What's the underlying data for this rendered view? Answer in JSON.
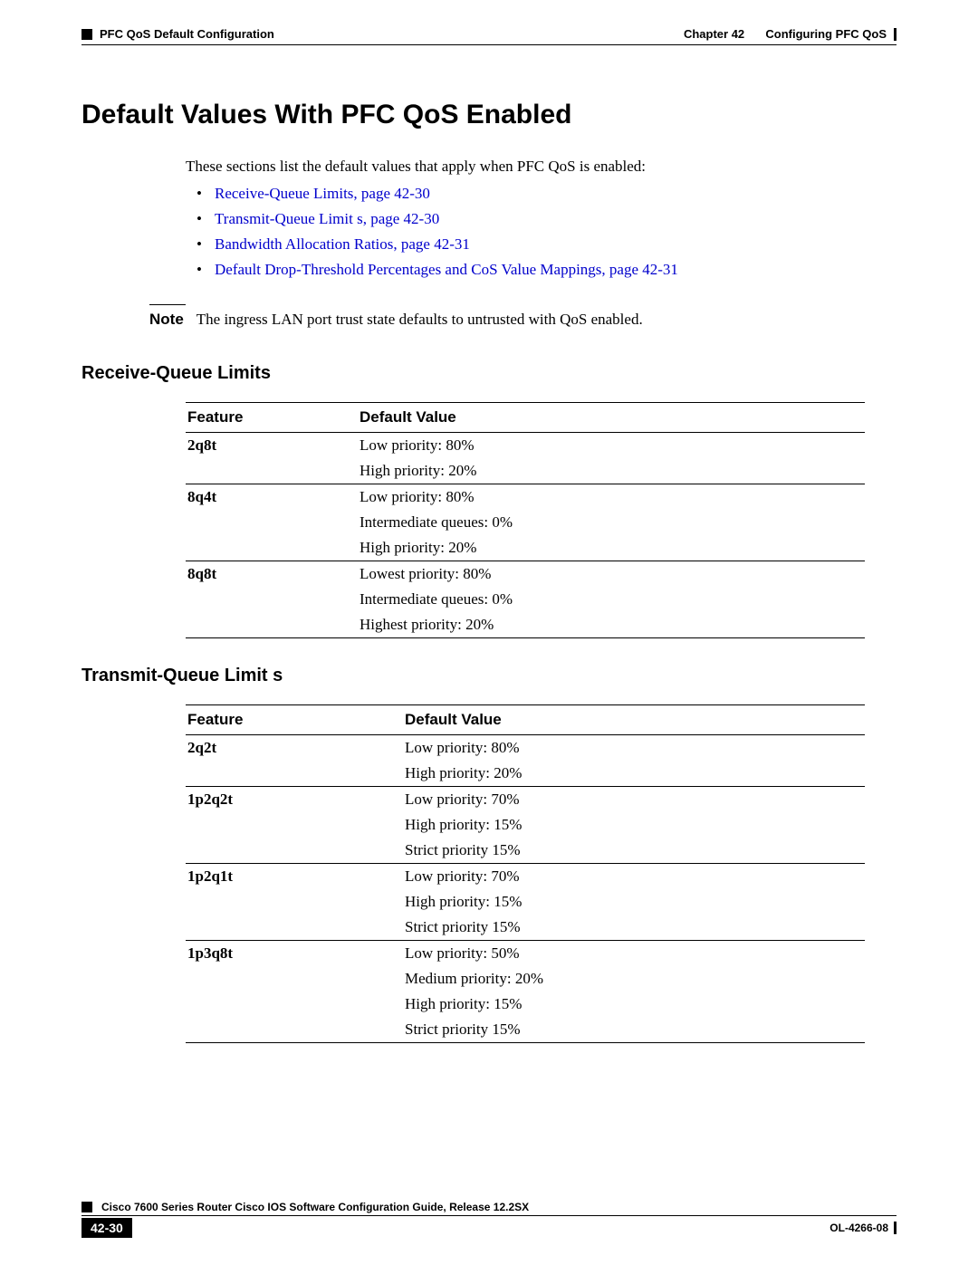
{
  "header": {
    "chapter": "Chapter 42",
    "chapter_title": "Configuring PFC QoS",
    "section": "PFC QoS Default Configuration"
  },
  "title": "Default Values With PFC QoS Enabled",
  "intro": "These sections list the default values that apply when PFC QoS is enabled:",
  "links": [
    "Receive-Queue Limits, page 42-30",
    "Transmit-Queue Limit s, page 42-30",
    "Bandwidth Allocation Ratios, page 42-31",
    "Default Drop-Threshold Percentages and CoS Value Mappings, page 42-31"
  ],
  "note": {
    "label": "Note",
    "text": "The ingress LAN port trust state defaults to untrusted with QoS enabled."
  },
  "receive": {
    "heading": "Receive-Queue Limits",
    "col_feature": "Feature",
    "col_value": "Default Value",
    "col1_width": 190,
    "col2_width": 560,
    "rows": [
      {
        "feature": "2q8t",
        "values": [
          "Low priority: 80%",
          "High priority: 20%"
        ]
      },
      {
        "feature": "8q4t",
        "values": [
          "Low priority: 80%",
          "Intermediate queues: 0%",
          "High priority: 20%"
        ]
      },
      {
        "feature": "8q8t",
        "values": [
          "Lowest priority: 80%",
          "Intermediate queues: 0%",
          "Highest priority: 20%"
        ]
      }
    ]
  },
  "transmit": {
    "heading": "Transmit-Queue Limit s",
    "col_feature": "Feature",
    "col_value": "Default Value",
    "col1_width": 240,
    "col2_width": 510,
    "rows": [
      {
        "feature": "2q2t",
        "values": [
          "Low priority: 80%",
          "High priority: 20%"
        ]
      },
      {
        "feature": "1p2q2t",
        "values": [
          "Low priority: 70%",
          "High priority: 15%",
          "Strict priority 15%"
        ]
      },
      {
        "feature": "1p2q1t",
        "values": [
          "Low priority: 70%",
          "High priority: 15%",
          "Strict priority 15%"
        ]
      },
      {
        "feature": "1p3q8t",
        "values": [
          "Low priority: 50%",
          "Medium priority: 20%",
          "High priority: 15%",
          "Strict priority 15%"
        ]
      }
    ]
  },
  "footer": {
    "book": "Cisco 7600 Series Router Cisco IOS Software Configuration Guide, Release 12.2SX",
    "page": "42-30",
    "doc_id": "OL-4266-08"
  },
  "colors": {
    "link": "#0000cc",
    "text": "#000000",
    "bg": "#ffffff"
  }
}
